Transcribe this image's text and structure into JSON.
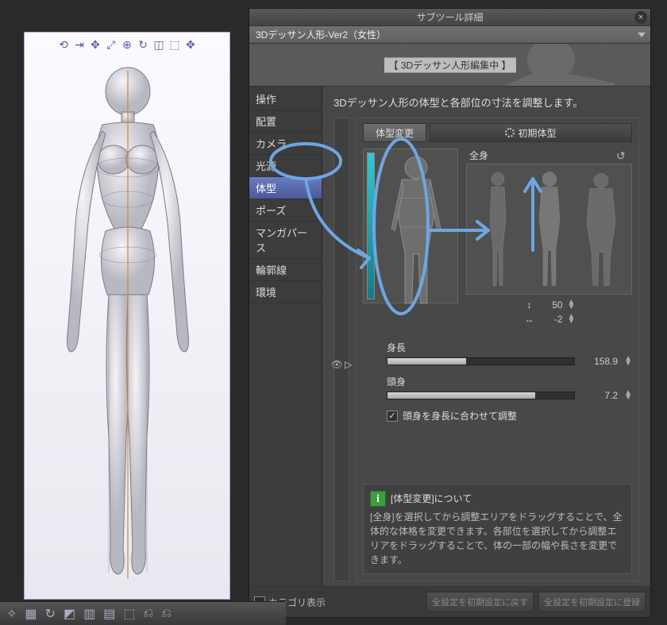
{
  "panel": {
    "title": "サブツール詳細",
    "subtool_tab": "3Dデッサン人形-Ver2（女性）",
    "editing_label": "【 3Dデッサン人形編集中 】"
  },
  "sidebar": {
    "items": [
      {
        "label": "操作"
      },
      {
        "label": "配置"
      },
      {
        "label": "カメラ"
      },
      {
        "label": "光源"
      },
      {
        "label": "体型",
        "selected": true
      },
      {
        "label": "ポーズ"
      },
      {
        "label": "マンガパース"
      },
      {
        "label": "輪郭線"
      },
      {
        "label": "環境"
      }
    ]
  },
  "main": {
    "description": "3Dデッサン人形の体型と各部位の寸法を調整します。",
    "tabs": {
      "change_body": "体型変更",
      "reset_body": "初期体型"
    },
    "full_body_label": "全身",
    "spinners": {
      "vertical": 50,
      "horizontal": -2
    },
    "sliders": {
      "height": {
        "label": "身長",
        "value": 158.9,
        "fill_pct": 42
      },
      "heads": {
        "label": "頭身",
        "value": 7.2,
        "fill_pct": 79
      }
    },
    "checkbox_label": "頭身を身長に合わせて調整",
    "checkbox_checked": true,
    "info": {
      "title": "[体型変更]について",
      "body": "[全身]を選択してから調整エリアをドラッグすることで、全体的な体格を変更できます。各部位を選択してから調整エリアをドラッグすることで、体の一部の幅や長さを変更できます。"
    }
  },
  "footer": {
    "category_label": "カテゴリ表示",
    "reset_all": "全設定を初期設定に戻す",
    "register_all": "全設定を初期設定に登録"
  },
  "colors": {
    "panel_bg": "#474747",
    "sidebar_bg": "#3c3c3c",
    "selected_bg": "#5a6cb0",
    "accent_teal": "#2fc9d6",
    "annotation_stroke": "#6ea6e2"
  }
}
